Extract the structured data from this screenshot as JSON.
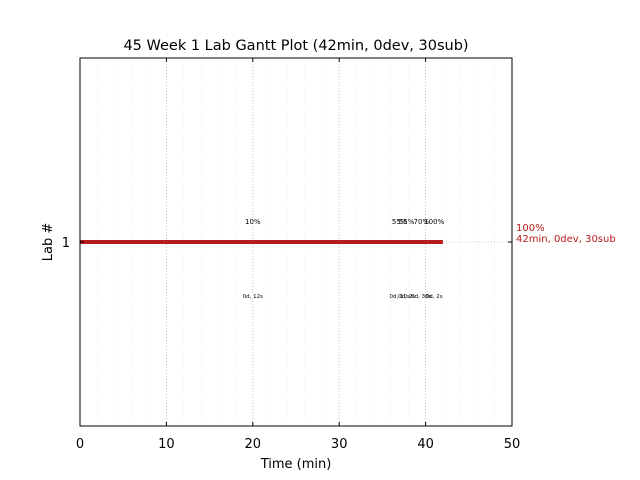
{
  "chart_data": {
    "type": "gantt",
    "title": "45 Week 1 Lab Gantt Plot (42min, 0dev, 30sub)",
    "xlabel": "Time (min)",
    "ylabel": "Lab #",
    "xlim": [
      0,
      50
    ],
    "x_ticks": [
      0,
      10,
      20,
      30,
      40,
      50
    ],
    "x_tick_labels": [
      "0",
      "10",
      "20",
      "30",
      "40",
      "50"
    ],
    "x_minor_step": 2,
    "y_categories": [
      "1"
    ],
    "grid": true,
    "bars": [
      {
        "lab": "1",
        "start": 0,
        "end": 42,
        "color": "#b71c1c"
      }
    ],
    "milestones": [
      {
        "x": 20,
        "pct_label": "10%",
        "time_label": "0d, 12s"
      },
      {
        "x": 37,
        "pct_label": "55%",
        "time_label": "0d, 10s"
      },
      {
        "x": 37.8,
        "pct_label": "55%",
        "time_label": "0d, 2s"
      },
      {
        "x": 39.5,
        "pct_label": "70%",
        "time_label": "0d, 30s"
      },
      {
        "x": 41,
        "pct_label": "100%",
        "time_label": "0d, 2s"
      }
    ],
    "end_annotation": {
      "line1": "100%",
      "line2": "42min, 0dev, 30sub",
      "color": "#b71c1c"
    }
  }
}
